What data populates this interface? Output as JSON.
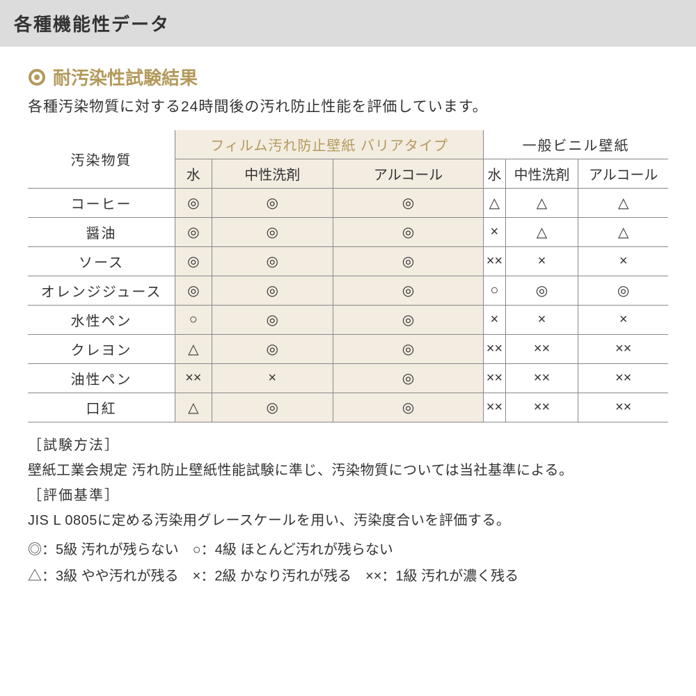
{
  "page_title": "各種機能性データ",
  "colors": {
    "title_bg": "#dcdcdc",
    "accent": "#b39a5c",
    "shade_bg": "#f3ece1",
    "border": "#888888",
    "text": "#333333"
  },
  "section": {
    "heading": "耐汚染性試験結果",
    "description": "各種汚染物質に対する24時間後の汚れ防止性能を評価しています。"
  },
  "table": {
    "row_header": "汚染物質",
    "groups": [
      {
        "label": "フィルム汚れ防止壁紙 バリアタイプ",
        "shaded": true,
        "subcols": [
          "水",
          "中性洗剤",
          "アルコール"
        ]
      },
      {
        "label": "一般ビニル壁紙",
        "shaded": false,
        "subcols": [
          "水",
          "中性洗剤",
          "アルコール"
        ]
      }
    ],
    "rows": [
      {
        "label": "コーヒー",
        "cells": [
          "◎",
          "◎",
          "◎",
          "△",
          "△",
          "△"
        ]
      },
      {
        "label": "醤油",
        "cells": [
          "◎",
          "◎",
          "◎",
          "×",
          "△",
          "△"
        ]
      },
      {
        "label": "ソース",
        "cells": [
          "◎",
          "◎",
          "◎",
          "××",
          "×",
          "×"
        ]
      },
      {
        "label": "オレンジジュース",
        "cells": [
          "◎",
          "◎",
          "◎",
          "○",
          "◎",
          "◎"
        ]
      },
      {
        "label": "水性ペン",
        "cells": [
          "○",
          "◎",
          "◎",
          "×",
          "×",
          "×"
        ]
      },
      {
        "label": "クレヨン",
        "cells": [
          "△",
          "◎",
          "◎",
          "××",
          "××",
          "××"
        ]
      },
      {
        "label": "油性ペン",
        "cells": [
          "××",
          "×",
          "◎",
          "××",
          "××",
          "××"
        ]
      },
      {
        "label": "口紅",
        "cells": [
          "△",
          "◎",
          "◎",
          "××",
          "××",
          "××"
        ]
      }
    ]
  },
  "notes": {
    "method_label": "［試験方法］",
    "method_text": "壁紙工業会規定 汚れ防止壁紙性能試験に準じ、汚染物質については当社基準による。",
    "criteria_label": "［評価基準］",
    "criteria_text": "JIS L 0805に定める汚染用グレースケールを用い、汚染度合いを評価する。"
  },
  "legend": {
    "line1": "◎：5級 汚れが残らない　○：4級 ほとんど汚れが残らない",
    "line2": "△：3級 やや汚れが残る　×：2級 かなり汚れが残る　××：1級 汚れが濃く残る"
  }
}
